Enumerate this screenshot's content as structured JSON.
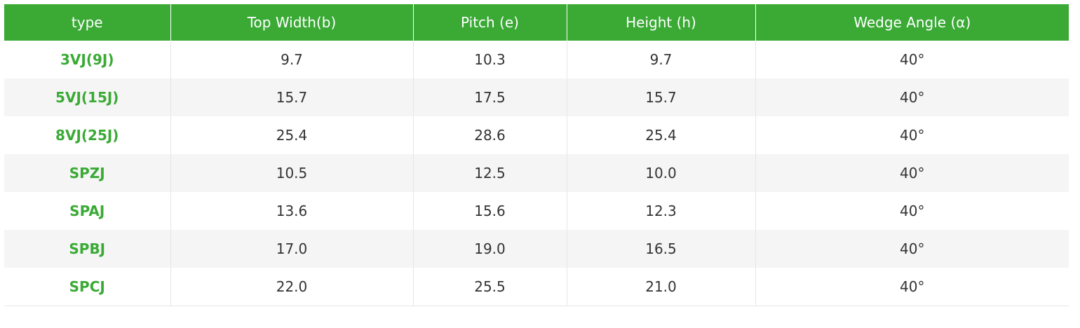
{
  "table": {
    "header": [
      "type",
      "Top Width(b)",
      "Pitch (e)",
      "Height (h)",
      "Wedge Angle (α)"
    ],
    "rows": [
      [
        "3VJ(9J)",
        "9.7",
        "10.3",
        "9.7",
        "40°"
      ],
      [
        "5VJ(15J)",
        "15.7",
        "17.5",
        "15.7",
        "40°"
      ],
      [
        "8VJ(25J)",
        "25.4",
        "28.6",
        "25.4",
        "40°"
      ],
      [
        "SPZJ",
        "10.5",
        "12.5",
        "10.0",
        "40°"
      ],
      [
        "SPAJ",
        "13.6",
        "15.6",
        "12.3",
        "40°"
      ],
      [
        "SPBJ",
        "17.0",
        "19.0",
        "16.5",
        "40°"
      ],
      [
        "SPCJ",
        "22.0",
        "25.5",
        "21.0",
        "40°"
      ]
    ]
  }
}
